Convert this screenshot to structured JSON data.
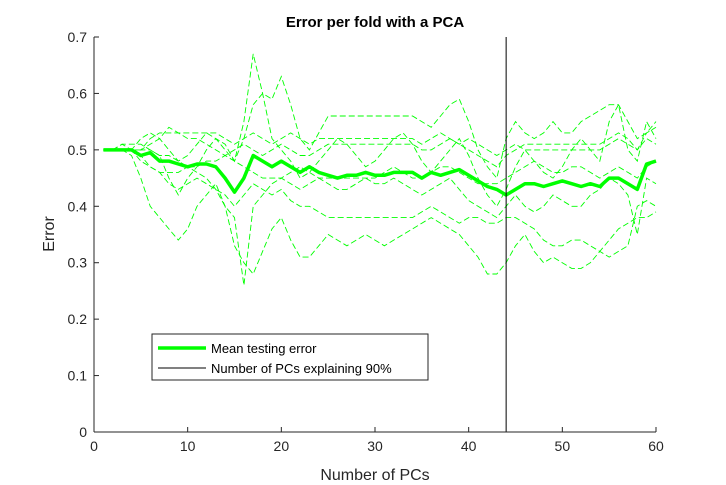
{
  "chart_data": {
    "type": "line",
    "title": "Error per fold with a PCA",
    "xlabel": "Number of PCs",
    "ylabel": "Error",
    "xlim": [
      0,
      60
    ],
    "ylim": [
      0,
      0.7
    ],
    "xticks": [
      0,
      10,
      20,
      30,
      40,
      50,
      60
    ],
    "yticks": [
      0,
      0.1,
      0.2,
      0.3,
      0.4,
      0.5,
      0.6,
      0.7
    ],
    "grid": false,
    "legend_position": "lower-left",
    "colors": {
      "fold": "#00ff00",
      "mean": "#00ff00",
      "vline": "#000000"
    },
    "x": [
      1,
      2,
      3,
      4,
      5,
      6,
      7,
      8,
      9,
      10,
      11,
      12,
      13,
      14,
      15,
      16,
      17,
      18,
      19,
      20,
      21,
      22,
      23,
      24,
      25,
      26,
      27,
      28,
      29,
      30,
      31,
      32,
      33,
      34,
      35,
      36,
      37,
      38,
      39,
      40,
      41,
      42,
      43,
      44,
      45,
      46,
      47,
      48,
      49,
      50,
      51,
      52,
      53,
      54,
      55,
      56,
      57,
      58,
      59,
      60
    ],
    "vertical_line_x": 44,
    "series": [
      {
        "name": "Mean testing error",
        "style": "solid",
        "values": [
          0.5,
          0.5,
          0.5,
          0.5,
          0.49,
          0.495,
          0.48,
          0.48,
          0.475,
          0.47,
          0.475,
          0.475,
          0.47,
          0.45,
          0.425,
          0.45,
          0.49,
          0.48,
          0.47,
          0.48,
          0.47,
          0.46,
          0.47,
          0.46,
          0.455,
          0.45,
          0.455,
          0.455,
          0.46,
          0.455,
          0.455,
          0.46,
          0.46,
          0.46,
          0.45,
          0.46,
          0.455,
          0.46,
          0.465,
          0.455,
          0.445,
          0.435,
          0.43,
          0.42,
          0.43,
          0.44,
          0.44,
          0.435,
          0.44,
          0.445,
          0.44,
          0.435,
          0.44,
          0.435,
          0.45,
          0.45,
          0.44,
          0.43,
          0.475,
          0.48
        ]
      },
      {
        "name": "Number of PCs explaining 90%",
        "style": "vline"
      }
    ],
    "folds": [
      [
        0.5,
        0.5,
        0.51,
        0.51,
        0.51,
        0.5,
        0.49,
        0.45,
        0.42,
        0.45,
        0.47,
        0.5,
        0.52,
        0.51,
        0.48,
        0.55,
        0.67,
        0.6,
        0.52,
        0.5,
        0.48,
        0.45,
        0.46,
        0.48,
        0.5,
        0.52,
        0.51,
        0.49,
        0.47,
        0.48,
        0.5,
        0.52,
        0.53,
        0.51,
        0.48,
        0.46,
        0.48,
        0.5,
        0.52,
        0.49,
        0.45,
        0.42,
        0.4,
        0.43,
        0.47,
        0.5,
        0.48,
        0.46,
        0.45,
        0.47,
        0.5,
        0.52,
        0.5,
        0.48,
        0.55,
        0.58,
        0.5,
        0.48,
        0.55,
        0.52
      ],
      [
        0.5,
        0.5,
        0.5,
        0.49,
        0.45,
        0.4,
        0.38,
        0.36,
        0.34,
        0.36,
        0.4,
        0.42,
        0.44,
        0.4,
        0.33,
        0.3,
        0.28,
        0.32,
        0.36,
        0.38,
        0.34,
        0.31,
        0.31,
        0.33,
        0.35,
        0.34,
        0.33,
        0.34,
        0.35,
        0.34,
        0.33,
        0.34,
        0.35,
        0.36,
        0.37,
        0.38,
        0.37,
        0.36,
        0.35,
        0.33,
        0.31,
        0.28,
        0.28,
        0.3,
        0.33,
        0.35,
        0.32,
        0.3,
        0.31,
        0.3,
        0.29,
        0.29,
        0.3,
        0.32,
        0.31,
        0.32,
        0.33,
        0.4,
        0.41,
        0.4
      ],
      [
        0.5,
        0.5,
        0.5,
        0.5,
        0.52,
        0.53,
        0.52,
        0.5,
        0.48,
        0.49,
        0.51,
        0.53,
        0.52,
        0.5,
        0.48,
        0.52,
        0.58,
        0.6,
        0.59,
        0.63,
        0.58,
        0.52,
        0.5,
        0.53,
        0.56,
        0.56,
        0.56,
        0.56,
        0.56,
        0.56,
        0.56,
        0.56,
        0.56,
        0.56,
        0.55,
        0.54,
        0.56,
        0.58,
        0.59,
        0.55,
        0.5,
        0.47,
        0.45,
        0.52,
        0.55,
        0.53,
        0.52,
        0.53,
        0.55,
        0.53,
        0.53,
        0.55,
        0.56,
        0.57,
        0.58,
        0.58,
        0.55,
        0.52,
        0.53,
        0.55
      ],
      [
        0.5,
        0.5,
        0.5,
        0.5,
        0.49,
        0.47,
        0.46,
        0.46,
        0.46,
        0.47,
        0.46,
        0.45,
        0.43,
        0.4,
        0.38,
        0.26,
        0.4,
        0.42,
        0.44,
        0.45,
        0.44,
        0.43,
        0.44,
        0.45,
        0.44,
        0.43,
        0.43,
        0.44,
        0.45,
        0.44,
        0.44,
        0.45,
        0.44,
        0.43,
        0.42,
        0.43,
        0.44,
        0.45,
        0.43,
        0.41,
        0.4,
        0.39,
        0.38,
        0.4,
        0.42,
        0.4,
        0.39,
        0.4,
        0.42,
        0.41,
        0.4,
        0.4,
        0.42,
        0.43,
        0.45,
        0.44,
        0.42,
        0.35,
        0.45,
        0.44
      ],
      [
        0.5,
        0.5,
        0.5,
        0.5,
        0.5,
        0.51,
        0.52,
        0.54,
        0.53,
        0.52,
        0.52,
        0.51,
        0.5,
        0.49,
        0.5,
        0.51,
        0.5,
        0.49,
        0.5,
        0.51,
        0.5,
        0.49,
        0.49,
        0.5,
        0.51,
        0.51,
        0.51,
        0.51,
        0.51,
        0.51,
        0.51,
        0.51,
        0.51,
        0.51,
        0.5,
        0.5,
        0.51,
        0.52,
        0.51,
        0.5,
        0.49,
        0.48,
        0.47,
        0.49,
        0.5,
        0.51,
        0.51,
        0.51,
        0.51,
        0.51,
        0.51,
        0.51,
        0.51,
        0.51,
        0.52,
        0.53,
        0.52,
        0.5,
        0.52,
        0.51
      ],
      [
        0.5,
        0.5,
        0.5,
        0.5,
        0.48,
        0.47,
        0.46,
        0.44,
        0.43,
        0.44,
        0.45,
        0.44,
        0.43,
        0.42,
        0.4,
        0.42,
        0.44,
        0.43,
        0.42,
        0.43,
        0.41,
        0.4,
        0.4,
        0.39,
        0.38,
        0.38,
        0.38,
        0.38,
        0.38,
        0.38,
        0.38,
        0.38,
        0.38,
        0.38,
        0.39,
        0.4,
        0.39,
        0.38,
        0.37,
        0.38,
        0.38,
        0.37,
        0.37,
        0.38,
        0.38,
        0.37,
        0.36,
        0.34,
        0.33,
        0.33,
        0.34,
        0.34,
        0.33,
        0.32,
        0.34,
        0.36,
        0.37,
        0.38,
        0.38,
        0.39
      ],
      [
        0.5,
        0.5,
        0.5,
        0.5,
        0.5,
        0.5,
        0.49,
        0.49,
        0.48,
        0.47,
        0.47,
        0.48,
        0.48,
        0.49,
        0.48,
        0.47,
        0.46,
        0.45,
        0.45,
        0.45,
        0.46,
        0.47,
        0.46,
        0.45,
        0.45,
        0.45,
        0.45,
        0.45,
        0.45,
        0.45,
        0.46,
        0.47,
        0.46,
        0.45,
        0.45,
        0.46,
        0.47,
        0.47,
        0.46,
        0.45,
        0.44,
        0.44,
        0.44,
        0.45,
        0.46,
        0.47,
        0.48,
        0.47,
        0.46,
        0.46,
        0.47,
        0.47,
        0.46,
        0.45,
        0.46,
        0.47,
        0.46,
        0.45,
        0.47,
        0.48
      ],
      [
        0.5,
        0.5,
        0.51,
        0.5,
        0.5,
        0.52,
        0.53,
        0.53,
        0.53,
        0.53,
        0.53,
        0.53,
        0.53,
        0.52,
        0.51,
        0.52,
        0.53,
        0.52,
        0.51,
        0.52,
        0.53,
        0.52,
        0.51,
        0.52,
        0.52,
        0.52,
        0.52,
        0.52,
        0.52,
        0.52,
        0.52,
        0.52,
        0.52,
        0.52,
        0.51,
        0.52,
        0.53,
        0.52,
        0.51,
        0.52,
        0.51,
        0.5,
        0.49,
        0.5,
        0.51,
        0.5,
        0.5,
        0.5,
        0.5,
        0.5,
        0.5,
        0.5,
        0.5,
        0.5,
        0.51,
        0.52,
        0.51,
        0.5,
        0.53,
        0.54
      ]
    ]
  },
  "legend": {
    "mean_label": "Mean testing error",
    "vline_label": "Number of PCs explaining 90%"
  }
}
